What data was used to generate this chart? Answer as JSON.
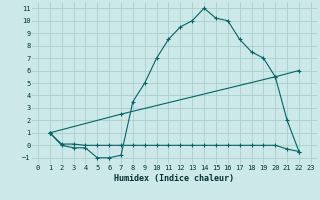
{
  "xlabel": "Humidex (Indice chaleur)",
  "bg_color": "#cce8e8",
  "grid_color": "#aacfcf",
  "line_color": "#006666",
  "xlim": [
    -0.5,
    23.5
  ],
  "ylim": [
    -1.5,
    11.5
  ],
  "xticks": [
    0,
    1,
    2,
    3,
    4,
    5,
    6,
    7,
    8,
    9,
    10,
    11,
    12,
    13,
    14,
    15,
    16,
    17,
    18,
    19,
    20,
    21,
    22,
    23
  ],
  "yticks": [
    -1,
    0,
    1,
    2,
    3,
    4,
    5,
    6,
    7,
    8,
    9,
    10,
    11
  ],
  "line1_x": [
    1,
    2,
    3,
    4,
    5,
    6,
    7,
    8,
    9,
    10,
    11,
    12,
    13,
    14,
    15,
    16,
    17,
    18,
    19,
    20,
    21,
    22
  ],
  "line1_y": [
    1,
    0,
    -0.2,
    -0.2,
    -1,
    -1,
    -0.8,
    3.5,
    5,
    7,
    8.5,
    9.5,
    10,
    11,
    10.2,
    10,
    8.5,
    7.5,
    7,
    5.5,
    2,
    -0.5
  ],
  "line2_x": [
    1,
    2,
    3,
    4,
    5,
    6,
    7,
    8,
    9,
    10,
    11,
    12,
    13,
    14,
    15,
    16,
    17,
    18,
    19,
    20,
    21,
    22
  ],
  "line2_y": [
    1,
    0.1,
    0.1,
    0,
    0,
    0,
    0,
    0,
    0,
    0,
    0,
    0,
    0,
    0,
    0,
    0,
    0,
    0,
    0,
    0,
    -0.3,
    -0.5
  ],
  "line3_x": [
    1,
    7,
    20,
    22
  ],
  "line3_y": [
    1,
    2.5,
    5.5,
    6
  ]
}
